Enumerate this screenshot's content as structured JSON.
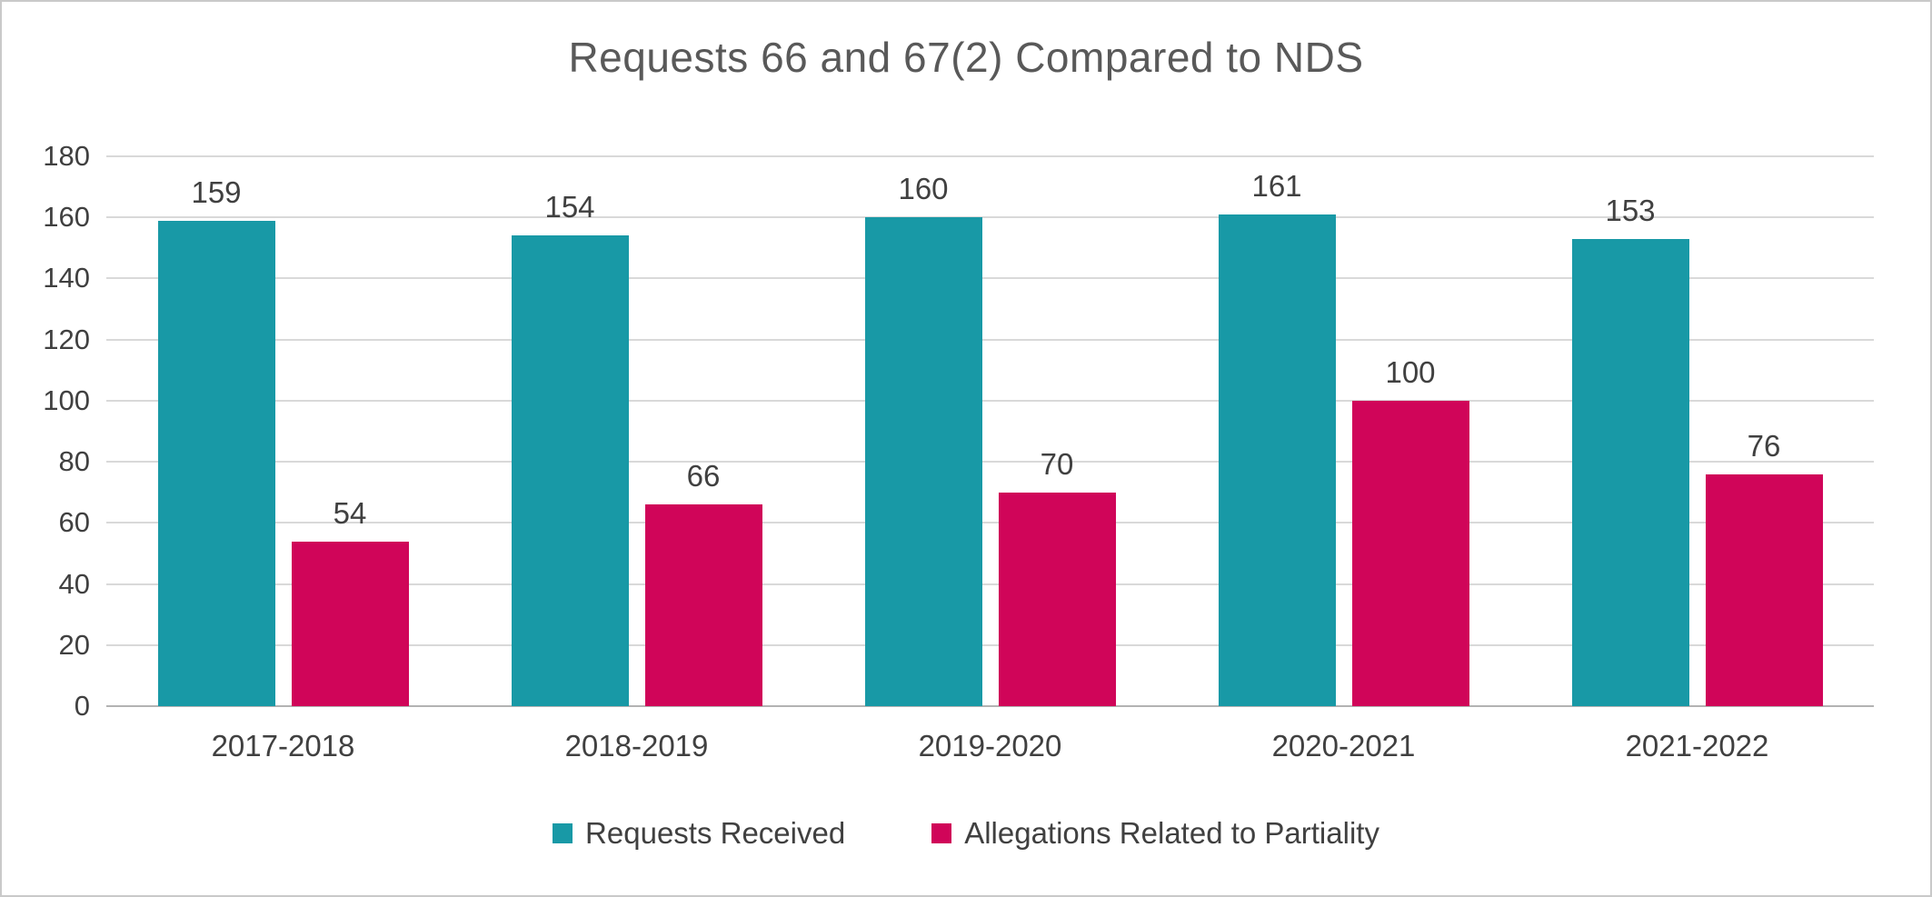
{
  "chart_data": {
    "type": "bar",
    "title": "Requests 66 and 67(2) Compared to NDS",
    "categories": [
      "2017-2018",
      "2018-2019",
      "2019-2020",
      "2020-2021",
      "2021-2022"
    ],
    "series": [
      {
        "name": "Requests Received",
        "color": "#1899a6",
        "values": [
          159,
          154,
          160,
          161,
          153
        ]
      },
      {
        "name": "Allegations Related to Partiality",
        "color": "#d00559",
        "values": [
          54,
          66,
          70,
          100,
          76
        ]
      }
    ],
    "xlabel": "",
    "ylabel": "",
    "ylim": [
      0,
      180
    ],
    "yticks": [
      0,
      20,
      40,
      60,
      80,
      100,
      120,
      140,
      160,
      180
    ],
    "grid": true,
    "legend_position": "bottom",
    "styles": {
      "title_color": "#595959",
      "label_color": "#404040",
      "gridline_color": "#d9d9d9",
      "axis_color": "#b3b3b3",
      "border_color": "#c9c9c9",
      "background": "#ffffff"
    }
  }
}
